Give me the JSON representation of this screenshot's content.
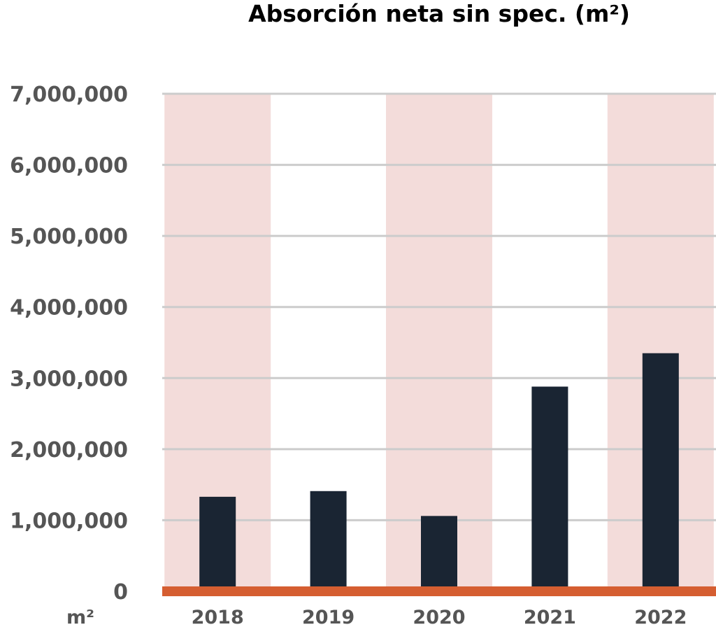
{
  "chart_data": {
    "type": "bar",
    "title": "Absorción neta sin spec. (m²)",
    "ylabel": "m²",
    "xlabel": "",
    "categories": [
      "2018",
      "2019",
      "2020",
      "2021",
      "2022"
    ],
    "values": [
      1330000,
      1410000,
      1060000,
      2880000,
      3350000
    ],
    "ylim": [
      0,
      7000000
    ],
    "yticks": [
      0,
      1000000,
      2000000,
      3000000,
      4000000,
      5000000,
      6000000,
      7000000
    ],
    "ytick_labels": [
      "0",
      "1,000,000",
      "2,000,000",
      "3,000,000",
      "4,000,000",
      "5,000,000",
      "6,000,000",
      "7,000,000"
    ],
    "grid": true,
    "legend": "none",
    "colors": {
      "bar": "#1a2533",
      "band": "#f3dcda",
      "baseline": "#d55e31",
      "grid": "#cccccc",
      "tick_text": "#555555",
      "title_text": "#000000"
    }
  }
}
